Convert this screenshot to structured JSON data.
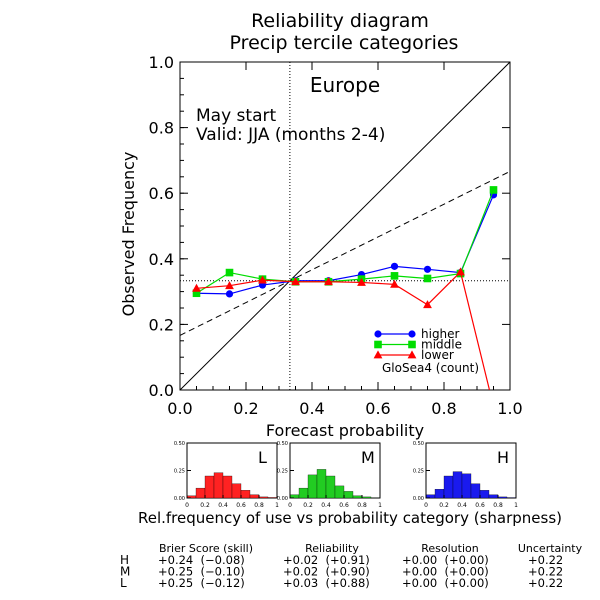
{
  "chart_data": {
    "type": "line",
    "title": "Reliability diagram",
    "subtitle": "Precip tercile categories",
    "region": "Europe",
    "annotations": [
      "May start",
      "Valid: JJA (months 2-4)"
    ],
    "xlabel": "Forecast probability",
    "ylabel": "Observed Frequency",
    "xlim": [
      0.0,
      1.0
    ],
    "ylim": [
      0.0,
      1.0
    ],
    "xticks": [
      "0.0",
      "0.2",
      "0.4",
      "0.6",
      "0.8",
      "1.0"
    ],
    "yticks": [
      "0.0",
      "0.2",
      "0.4",
      "0.6",
      "0.8",
      "1.0"
    ],
    "climatology": 0.333,
    "legend_position": "bottom-right",
    "legend_note": "GloSea4 (count)",
    "series": [
      {
        "name": "higher",
        "color": "#0000ff",
        "marker": "circle",
        "x": [
          0.05,
          0.15,
          0.25,
          0.35,
          0.45,
          0.55,
          0.65,
          0.75,
          0.85,
          0.95
        ],
        "y": [
          0.295,
          0.293,
          0.32,
          0.333,
          0.333,
          0.352,
          0.377,
          0.368,
          0.358,
          0.595
        ]
      },
      {
        "name": "middle",
        "color": "#00dd00",
        "marker": "square",
        "x": [
          0.05,
          0.15,
          0.25,
          0.35,
          0.45,
          0.55,
          0.65,
          0.75,
          0.85,
          0.95
        ],
        "y": [
          0.295,
          0.358,
          0.338,
          0.33,
          0.33,
          0.338,
          0.348,
          0.34,
          0.355,
          0.61
        ]
      },
      {
        "name": "lower",
        "color": "#ff0000",
        "marker": "triangle",
        "x": [
          0.05,
          0.15,
          0.25,
          0.35,
          0.45,
          0.55,
          0.65,
          0.75,
          0.85,
          0.95
        ],
        "y": [
          0.31,
          0.318,
          0.335,
          0.33,
          0.33,
          0.328,
          0.322,
          0.26,
          0.36,
          -0.05
        ]
      }
    ],
    "sharpness": {
      "title": "Rel.frequency of use vs probability category (sharpness)",
      "ylim": [
        0,
        0.5
      ],
      "yticks": [
        "0.50",
        "0.25",
        "0.00"
      ],
      "xticks": [
        "0",
        "0.2",
        "0.4",
        "0.6",
        "0.8",
        "1"
      ],
      "panels": [
        {
          "label": "L",
          "color": "#ff2222",
          "values": [
            0.02,
            0.09,
            0.2,
            0.23,
            0.2,
            0.13,
            0.07,
            0.03,
            0.01,
            0.005
          ]
        },
        {
          "label": "M",
          "color": "#22cc22",
          "values": [
            0.03,
            0.09,
            0.21,
            0.26,
            0.2,
            0.11,
            0.06,
            0.02,
            0.01,
            0.003
          ]
        },
        {
          "label": "H",
          "color": "#1a1aee",
          "values": [
            0.03,
            0.08,
            0.2,
            0.24,
            0.22,
            0.13,
            0.07,
            0.03,
            0.01,
            0.004
          ]
        }
      ]
    },
    "scores": {
      "headers": [
        "Brier Score (skill)",
        "Reliability",
        "Resolution",
        "Uncertainty"
      ],
      "rows": [
        {
          "label": "H",
          "color": "#0000ff",
          "cells": [
            "+0.24  (−0.08)",
            "+0.02  (+0.91)",
            "+0.00  (+0.00)",
            "+0.22"
          ]
        },
        {
          "label": "M",
          "color": "#00cc00",
          "cells": [
            "+0.25  (−0.10)",
            "+0.02  (+0.90)",
            "+0.00  (+0.00)",
            "+0.22"
          ]
        },
        {
          "label": "L",
          "color": "#ff0000",
          "cells": [
            "+0.25  (−0.12)",
            "+0.03  (+0.88)",
            "+0.00  (+0.00)",
            "+0.22"
          ]
        }
      ]
    }
  }
}
